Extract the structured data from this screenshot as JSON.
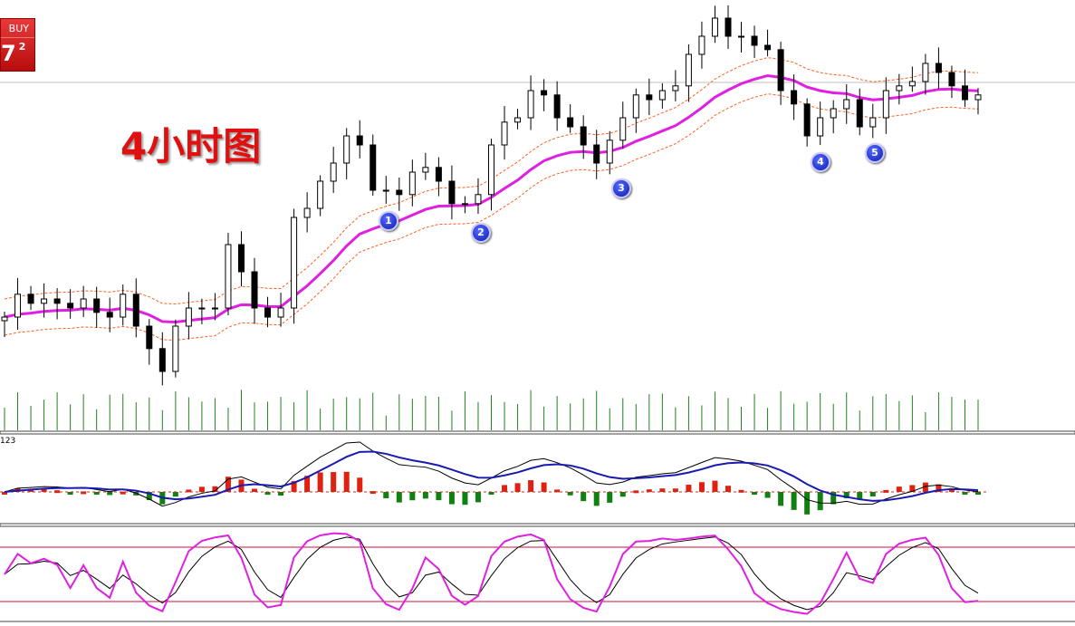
{
  "trade_button": {
    "label": "BUY",
    "price_main": "7",
    "price_sup": "2",
    "color": "#d01818"
  },
  "title": "4小时图",
  "markers": [
    "1",
    "2",
    "3",
    "4",
    "5"
  ],
  "macd_panel_label": "123",
  "chart_data": {
    "type": "candlestick",
    "closes": [
      22.5,
      28.8,
      26.3,
      27.5,
      26.3,
      25,
      27.5,
      23.8,
      22.5,
      28.8,
      20,
      13.8,
      7.5,
      20,
      25,
      25,
      25,
      42.5,
      35,
      25,
      22.5,
      25,
      50,
      52.5,
      60,
      65,
      72.5,
      70,
      57.5,
      57.5,
      56.3,
      62.5,
      63.8,
      60,
      53.8,
      53.8,
      56.3,
      70,
      76.3,
      77.5,
      85,
      83.8,
      77.5,
      75,
      70,
      65,
      71.3,
      77.5,
      83.8,
      82.5,
      85,
      86.3,
      95,
      100,
      105,
      100,
      100,
      97.5,
      96.3,
      85,
      81.3,
      72.5,
      77.5,
      80,
      82.5,
      75,
      77.5,
      85,
      86.3,
      87.5,
      92.5,
      90,
      86.3,
      82.5,
      83.8
    ],
    "moving_average": {
      "color": "#e020e0",
      "envelope_color": "#ff6020"
    },
    "macd": {
      "main_color": "#1a1ab0",
      "signal_color": "#000000",
      "hist_up": "#e02010",
      "hist_down": "#108010"
    },
    "stochastic": {
      "levels": [
        80,
        20
      ],
      "k_color": "#e020e0",
      "d_color": "#000000",
      "level_color": "#d01040"
    },
    "volume_color": "#208020"
  }
}
